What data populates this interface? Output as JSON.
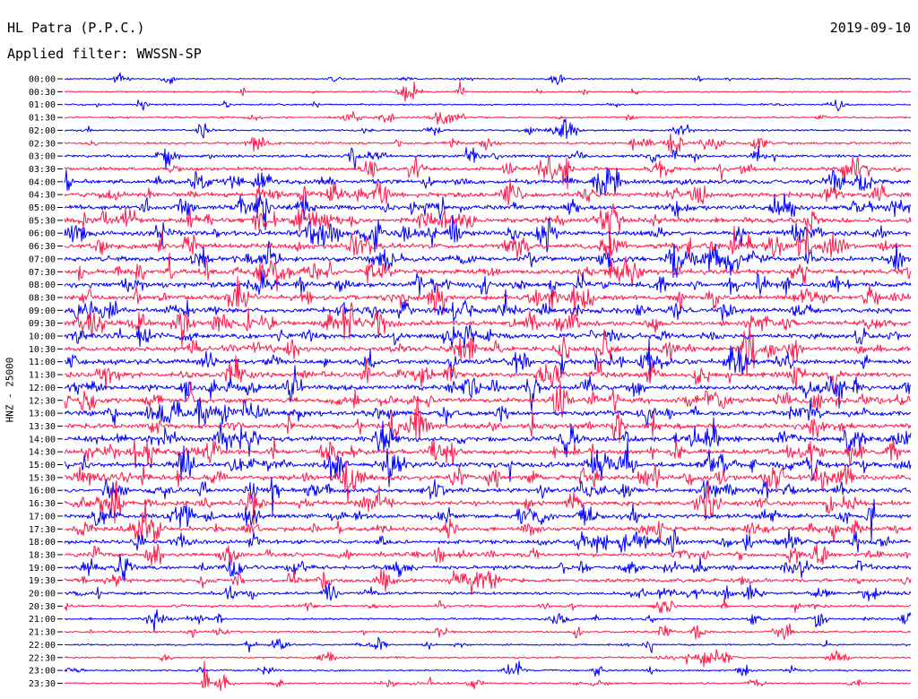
{
  "header": {
    "station": "HL Patra (P.P.C.)",
    "filter": "Applied filter: WWSSN-SP",
    "date": "2019-09-10",
    "channel": "HNZ - 25000"
  },
  "chart_data": {
    "type": "line",
    "title": "",
    "xlabel": "",
    "ylabel": "HNZ - 25000",
    "rows": [
      "00:00",
      "00:30",
      "01:00",
      "01:30",
      "02:00",
      "02:30",
      "03:00",
      "03:30",
      "04:00",
      "04:30",
      "05:00",
      "05:30",
      "06:00",
      "06:30",
      "07:00",
      "07:30",
      "08:00",
      "08:30",
      "09:00",
      "09:30",
      "10:00",
      "10:30",
      "11:00",
      "11:30",
      "12:00",
      "12:30",
      "13:00",
      "13:30",
      "14:00",
      "14:30",
      "15:00",
      "15:30",
      "16:00",
      "16:30",
      "17:00",
      "17:30",
      "18:00",
      "18:30",
      "19:00",
      "19:30",
      "20:00",
      "20:30",
      "21:00",
      "21:30",
      "22:00",
      "22:30",
      "23:00",
      "23:30"
    ],
    "row_colors": [
      "#0000ff",
      "#ff1a4a"
    ],
    "noise_level": [
      0.15,
      0.2,
      0.25,
      0.3,
      0.35,
      0.45,
      0.6,
      0.8,
      1.0,
      1.1,
      1.15,
      1.2,
      1.2,
      1.2,
      1.2,
      1.2,
      1.2,
      1.2,
      1.2,
      1.2,
      1.2,
      1.2,
      1.2,
      1.2,
      1.2,
      1.2,
      1.2,
      1.2,
      1.2,
      1.2,
      1.2,
      1.2,
      1.1,
      1.1,
      1.0,
      1.0,
      1.0,
      0.95,
      0.9,
      0.8,
      0.6,
      0.5,
      0.4,
      0.35,
      0.3,
      0.3,
      0.3,
      0.3
    ],
    "grid": false
  }
}
